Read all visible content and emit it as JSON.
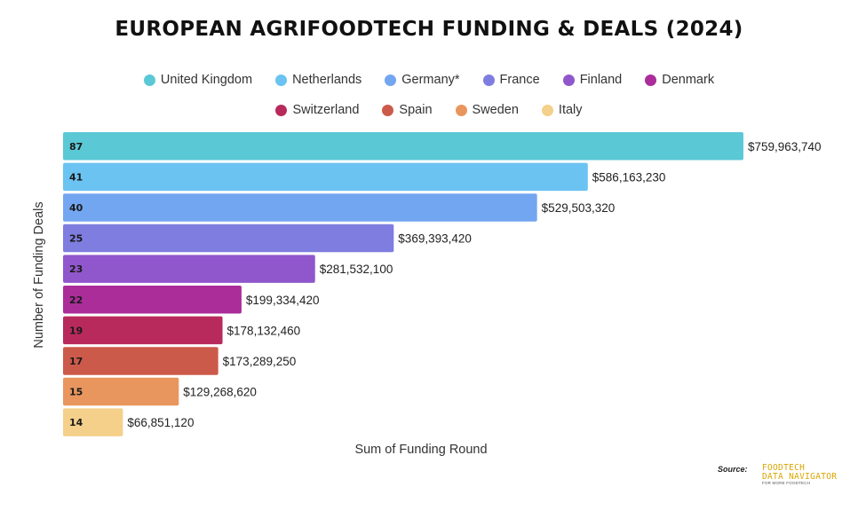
{
  "chart_data": {
    "type": "bar",
    "orientation": "horizontal",
    "title": "EUROPEAN AGRIFOODTECH FUNDING & DEALS (2024)",
    "xlabel": "Sum of Funding Round",
    "ylabel": "Number of Funding Deals",
    "xlim": [
      0,
      760000000
    ],
    "categories": [
      "United Kingdom",
      "Netherlands",
      "Germany*",
      "France",
      "Finland",
      "Denmark",
      "Switzerland",
      "Spain",
      "Sweden",
      "Italy"
    ],
    "values": [
      759963740,
      586163230,
      529503320,
      369393420,
      281532100,
      199334420,
      178132460,
      173289250,
      129268620,
      66851120
    ],
    "value_labels": [
      "$759,963,740",
      "$586,163,230",
      "$529,503,320",
      "$369,393,420",
      "$281,532,100",
      "$199,334,420",
      "$178,132,460",
      "$173,289,250",
      "$129,268,620",
      "$66,851,120"
    ],
    "deals": [
      87,
      41,
      40,
      25,
      23,
      22,
      19,
      17,
      15,
      14
    ],
    "deal_labels": [
      "87",
      "41",
      "40",
      "25",
      "23",
      "22",
      "19",
      "17",
      "15",
      "14"
    ],
    "colors": [
      "#5bc8d6",
      "#6bc3f2",
      "#73a6f0",
      "#7f7de0",
      "#9057cc",
      "#ab2d9a",
      "#b82a5c",
      "#cc5a4a",
      "#e8965e",
      "#f4d08a"
    ]
  },
  "legend": {
    "row1": [
      {
        "label": "United Kingdom",
        "color": "#5bc8d6"
      },
      {
        "label": "Netherlands",
        "color": "#6bc3f2"
      },
      {
        "label": "Germany*",
        "color": "#73a6f0"
      },
      {
        "label": "France",
        "color": "#7f7de0"
      },
      {
        "label": "Finland",
        "color": "#9057cc"
      },
      {
        "label": "Denmark",
        "color": "#ab2d9a"
      }
    ],
    "row2": [
      {
        "label": "Switzerland",
        "color": "#b82a5c"
      },
      {
        "label": "Spain",
        "color": "#cc5a4a"
      },
      {
        "label": "Sweden",
        "color": "#e8965e"
      },
      {
        "label": "Italy",
        "color": "#f4d08a"
      }
    ]
  },
  "footer": {
    "source_label": "Source:",
    "logo_line1": "FOODTECH",
    "logo_line2": "DATA NAVIGATOR",
    "logo_sub": "FOR MORE FOODTECH"
  }
}
